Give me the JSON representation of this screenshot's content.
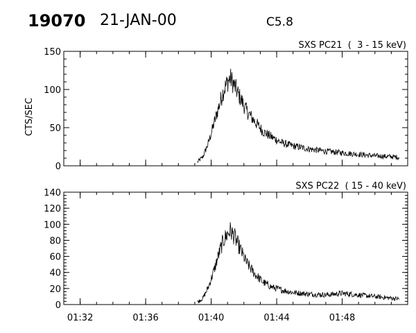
{
  "header": {
    "event_id": "19070",
    "date": "21-JAN-00",
    "flare_class": "C5.8"
  },
  "chart_data": [
    {
      "type": "line",
      "title": "SXS PC21  (  3 - 15 keV)",
      "ylabel": "CTS/SEC",
      "xlabel": "",
      "xlim": [
        "01:31",
        "01:52"
      ],
      "ylim": [
        0,
        150
      ],
      "yticks": [
        "0",
        "50",
        "100",
        "150"
      ],
      "xticks": [
        "01:32",
        "01:36",
        "01:40",
        "01:44",
        "01:48"
      ],
      "series": [
        {
          "x": [
            "01:39:10",
            "01:39:30",
            "01:39:50",
            "01:40:10",
            "01:40:30",
            "01:40:45",
            "01:41:00",
            "01:41:10",
            "01:41:25",
            "01:41:45",
            "01:42:10",
            "01:42:40",
            "01:43:10",
            "01:43:40",
            "01:44:20",
            "01:45:00",
            "01:46:00",
            "01:47:00",
            "01:48:00",
            "01:49:00",
            "01:50:00",
            "01:51:00",
            "01:51:30"
          ],
          "values": [
            5,
            12,
            30,
            55,
            80,
            98,
            110,
            115,
            105,
            90,
            72,
            58,
            45,
            38,
            30,
            26,
            22,
            19,
            17,
            15,
            13,
            12,
            11
          ]
        }
      ]
    },
    {
      "type": "line",
      "title": "SXS PC22  ( 15 - 40 keV)",
      "ylabel": "",
      "xlabel": "",
      "xlim": [
        "01:31",
        "01:52"
      ],
      "ylim": [
        0,
        140
      ],
      "yticks": [
        "0",
        "20",
        "40",
        "60",
        "80",
        "100",
        "120",
        "140"
      ],
      "xticks": [
        "01:32",
        "01:36",
        "01:40",
        "01:44",
        "01:48"
      ],
      "series": [
        {
          "x": [
            "01:39:10",
            "01:39:30",
            "01:39:50",
            "01:40:10",
            "01:40:30",
            "01:40:45",
            "01:41:00",
            "01:41:10",
            "01:41:25",
            "01:41:45",
            "01:42:10",
            "01:42:40",
            "01:43:10",
            "01:43:40",
            "01:44:20",
            "01:45:00",
            "01:46:00",
            "01:47:00",
            "01:48:00",
            "01:49:00",
            "01:50:00",
            "01:51:00",
            "01:51:30"
          ],
          "values": [
            3,
            8,
            22,
            42,
            65,
            80,
            88,
            92,
            85,
            70,
            52,
            38,
            28,
            22,
            18,
            15,
            13,
            12,
            14,
            12,
            10,
            8,
            7
          ]
        }
      ]
    }
  ]
}
